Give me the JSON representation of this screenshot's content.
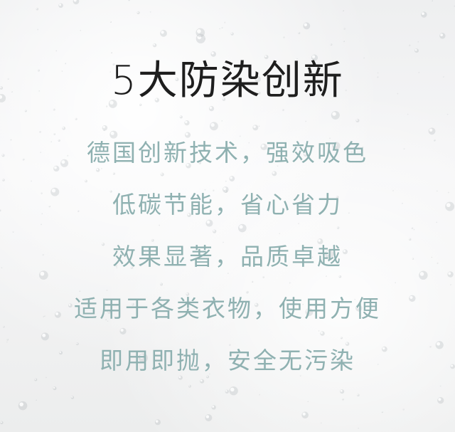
{
  "headline": "5大防染创新",
  "features": [
    "德国创新技术，强效吸色",
    "低碳节能，省心省力",
    "效果显著，品质卓越",
    "适用于各类衣物，使用方便",
    "即用即抛，安全无污染"
  ],
  "colors": {
    "background": "#f2f3f4",
    "headline": "#1e1e1e",
    "feature_text": "#8fb1b1"
  }
}
